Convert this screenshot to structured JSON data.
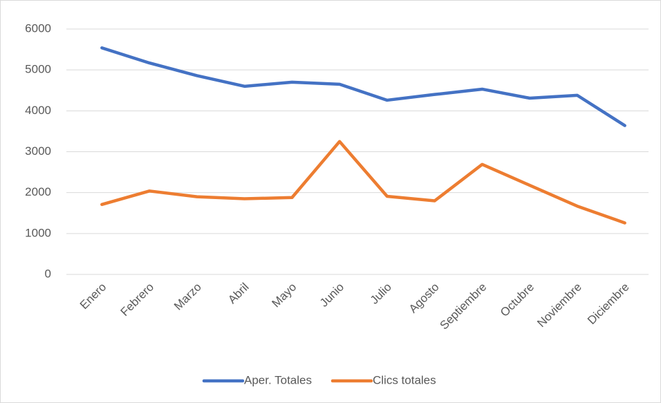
{
  "chart_data": {
    "type": "line",
    "categories": [
      "Enero",
      "Febrero",
      "Marzo",
      "Abril",
      "Mayo",
      "Junio",
      "Julio",
      "Agosto",
      "Septiembre",
      "Octubre",
      "Noviembre",
      "Diciembre"
    ],
    "series": [
      {
        "name": "Aper. Totales",
        "color": "#4472c4",
        "values": [
          5540,
          5170,
          4860,
          4600,
          4700,
          4650,
          4260,
          4400,
          4530,
          4310,
          4380,
          3640
        ]
      },
      {
        "name": "Clics totales",
        "color": "#ed7d31",
        "values": [
          1710,
          2040,
          1900,
          1850,
          1880,
          3250,
          1910,
          1800,
          2690,
          2180,
          1670,
          1260
        ]
      }
    ],
    "ylim": [
      0,
      6000
    ],
    "yticks": [
      0,
      1000,
      2000,
      3000,
      4000,
      5000,
      6000
    ],
    "grid": true,
    "legend": "bottom"
  }
}
